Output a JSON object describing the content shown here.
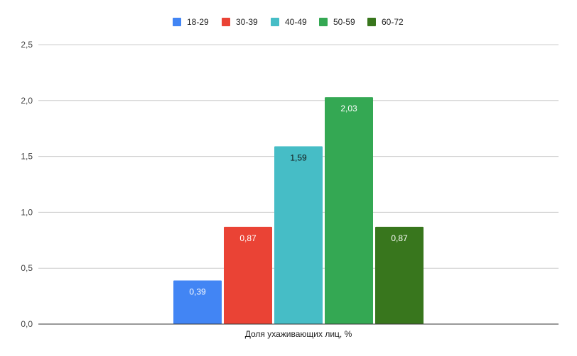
{
  "chart_data": {
    "type": "bar",
    "categories": [
      "Доля ухаживающих лиц, %"
    ],
    "series": [
      {
        "name": "18-29",
        "values": [
          0.39
        ],
        "color": "#4285f4",
        "label": "0,39"
      },
      {
        "name": "30-39",
        "values": [
          0.87
        ],
        "color": "#ea4335",
        "label": "0,87"
      },
      {
        "name": "40-49",
        "values": [
          1.59
        ],
        "color": "#46bdc6",
        "label": "1,59"
      },
      {
        "name": "50-59",
        "values": [
          2.03
        ],
        "color": "#34a853",
        "label": "2,03"
      },
      {
        "name": "60-72",
        "values": [
          0.87
        ],
        "color": "#38761d",
        "label": "0,87"
      }
    ],
    "ylim": [
      0,
      2.5
    ],
    "yticks": [
      0,
      0.5,
      1.0,
      1.5,
      2.0,
      2.5
    ],
    "ytick_labels": [
      "0,0",
      "0,5",
      "1,0",
      "1,5",
      "2,0",
      "2,5"
    ],
    "grid": true,
    "legend_position": "top",
    "title": "",
    "xlabel": "",
    "ylabel": ""
  }
}
